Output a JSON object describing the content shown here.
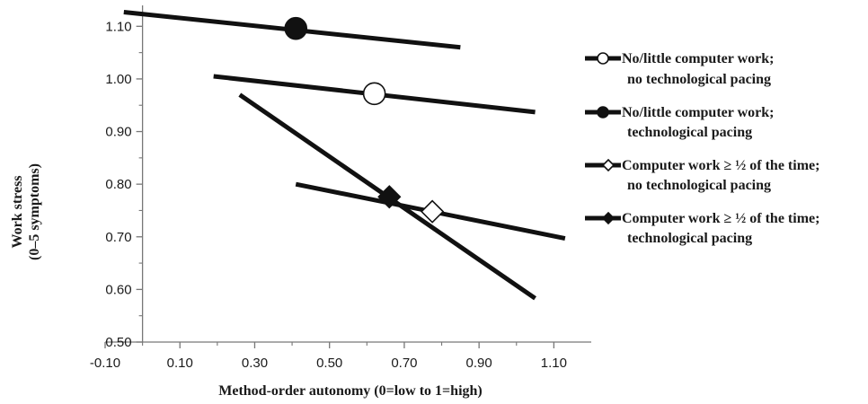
{
  "chart_data": {
    "type": "line",
    "title": "",
    "xlabel": "Method-order autonomy (0=low to 1=high)",
    "ylabel_line1": "Work stress",
    "ylabel_line2": "(0–5 symptoms)",
    "xlim": [
      -0.1,
      1.2
    ],
    "ylim": [
      0.5,
      1.15
    ],
    "xticks": [
      "-0.10",
      "0.10",
      "0.30",
      "0.50",
      "0.70",
      "0.90",
      "1.10"
    ],
    "xtick_values": [
      -0.1,
      0.1,
      0.3,
      0.5,
      0.7,
      0.9,
      1.1
    ],
    "yticks": [
      "0.50",
      "0.60",
      "0.70",
      "0.80",
      "0.90",
      "1.00",
      "1.10"
    ],
    "ytick_values": [
      0.5,
      0.6,
      0.7,
      0.8,
      0.9,
      1.0,
      1.1
    ],
    "grid": false,
    "legend_position": "right",
    "series": [
      {
        "legend_line1": "No/little computer work;",
        "legend_line2": "no technological pacing",
        "marker": "circle-open",
        "x": [
          0.19,
          1.05
        ],
        "y": [
          1.005,
          0.937
        ],
        "marker_point": [
          0.62,
          0.972
        ]
      },
      {
        "legend_line1": "No/little computer work;",
        "legend_line2": "technological pacing",
        "marker": "circle-filled",
        "x": [
          -0.05,
          0.85
        ],
        "y": [
          1.127,
          1.06
        ],
        "marker_point": [
          0.41,
          1.096
        ]
      },
      {
        "legend_line1": "Computer work ≥ ½ of the time;",
        "legend_line2": "no technological pacing",
        "marker": "diamond-open",
        "x": [
          0.41,
          1.13
        ],
        "y": [
          0.8,
          0.697
        ],
        "marker_point": [
          0.775,
          0.748
        ]
      },
      {
        "legend_line1": "Computer work ≥ ½ of the time;",
        "legend_line2": "technological pacing",
        "marker": "diamond-filled",
        "x": [
          0.26,
          1.05
        ],
        "y": [
          0.97,
          0.583
        ],
        "marker_point": [
          0.66,
          0.776
        ]
      }
    ]
  }
}
